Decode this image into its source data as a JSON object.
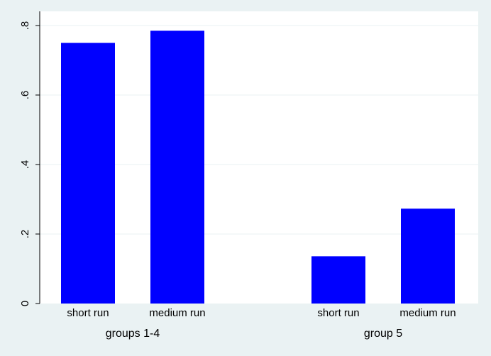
{
  "chart_data": {
    "type": "bar",
    "title": "",
    "xlabel": "",
    "ylabel": "",
    "ylim": [
      0,
      0.8
    ],
    "yticks": [
      0,
      0.2,
      0.4,
      0.6,
      0.8
    ],
    "ytick_labels": [
      "0",
      ".2",
      ".4",
      ".6",
      ".8"
    ],
    "grid": true,
    "groups": [
      {
        "label": "groups 1-4",
        "categories": [
          "short run",
          "medium run"
        ],
        "values": [
          0.75,
          0.785
        ]
      },
      {
        "label": "group 5",
        "categories": [
          "short run",
          "medium run"
        ],
        "values": [
          0.136,
          0.273
        ]
      }
    ],
    "bar_color": "#0000ff",
    "plot_background": "#ffffff",
    "page_background": "#eaf2f3",
    "grid_color": "#eaf2f3"
  }
}
